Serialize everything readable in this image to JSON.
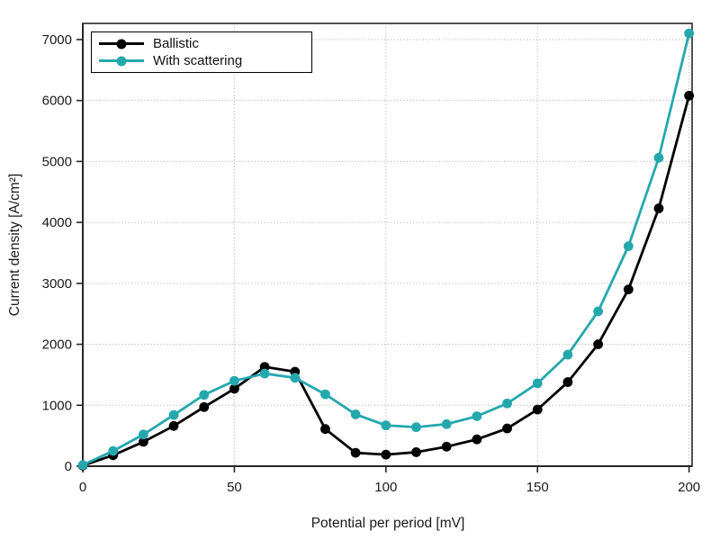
{
  "chart_data": {
    "type": "line",
    "x": [
      0,
      10,
      20,
      30,
      40,
      50,
      60,
      70,
      80,
      90,
      100,
      110,
      120,
      130,
      140,
      150,
      160,
      170,
      180,
      190,
      200
    ],
    "series": [
      {
        "name": "Ballistic",
        "color": "#000000",
        "values": [
          10,
          180,
          400,
          660,
          970,
          1270,
          1630,
          1550,
          610,
          220,
          190,
          230,
          320,
          440,
          620,
          930,
          1380,
          2000,
          2900,
          4230,
          6080
        ]
      },
      {
        "name": "With scattering",
        "color": "#25a8ad",
        "values": [
          20,
          250,
          520,
          840,
          1170,
          1400,
          1520,
          1450,
          1180,
          850,
          670,
          640,
          690,
          820,
          1030,
          1360,
          1830,
          2540,
          3610,
          5060,
          7100
        ]
      }
    ],
    "title": "",
    "xlabel": "Potential per period [mV]",
    "ylabel": "Current density [A/cm²]",
    "xticks": [
      0,
      50,
      100,
      150,
      200
    ],
    "yticks": [
      0,
      1000,
      2000,
      3000,
      4000,
      5000,
      6000,
      7000
    ],
    "xlim": [
      0,
      201
    ],
    "ylim": [
      0,
      7265
    ],
    "grid": true,
    "grid_style": "dotted",
    "legend_position": "upper-left",
    "marker": "circle"
  },
  "colors": {
    "frame": "#262626",
    "grid": "#a6a6a6",
    "background": "#ffffff",
    "text": "#1a1a1a"
  },
  "legend": {
    "items": [
      {
        "label": "Ballistic"
      },
      {
        "label": "With scattering"
      }
    ]
  }
}
